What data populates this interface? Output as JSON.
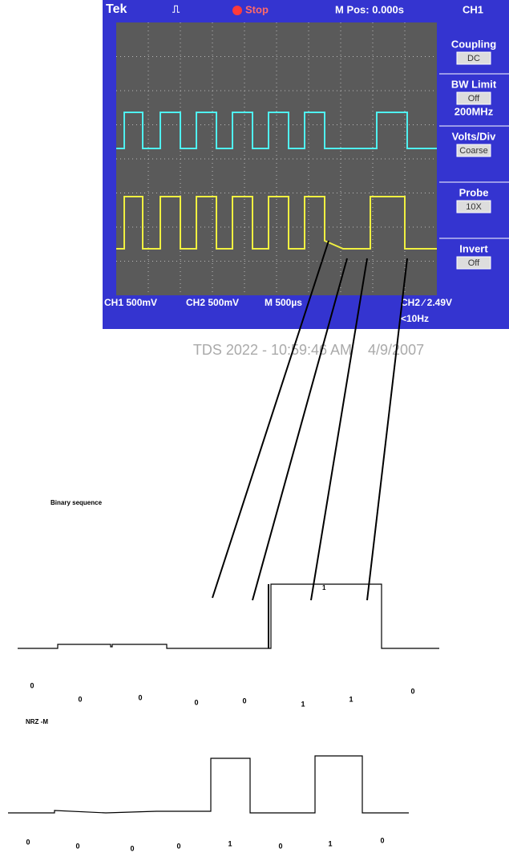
{
  "scope": {
    "header": {
      "brand": "Tek",
      "status": "Stop",
      "position": "M Pos: 0.000s",
      "channel": "CH1"
    },
    "menu": [
      {
        "label": "Coupling",
        "value": "DC"
      },
      {
        "label": "BW Limit",
        "value": "Off",
        "extra": "200MHz"
      },
      {
        "label": "Volts/Div",
        "value": "Coarse"
      },
      {
        "label": "Probe",
        "value": "10X"
      },
      {
        "label": "Invert",
        "value": "Off"
      }
    ],
    "footer": {
      "ch1": "CH1 500mV",
      "ch2": "CH2 500mV",
      "timebase": "M 500µs",
      "trigger": "CH2 ∕ 2.49V",
      "frequency": "<10Hz"
    }
  },
  "caption": "TDS 2022 - 10:59:46 AM    4/9/2007",
  "binary": {
    "title": "Binary sequence",
    "marker": "1",
    "bits": [
      "0",
      "0",
      "0",
      "0",
      "0",
      "1",
      "1",
      "0"
    ]
  },
  "nrz": {
    "title": "NRZ -M",
    "bits": [
      "0",
      "0",
      "0",
      "0",
      "1",
      "0",
      "1",
      "0"
    ]
  }
}
